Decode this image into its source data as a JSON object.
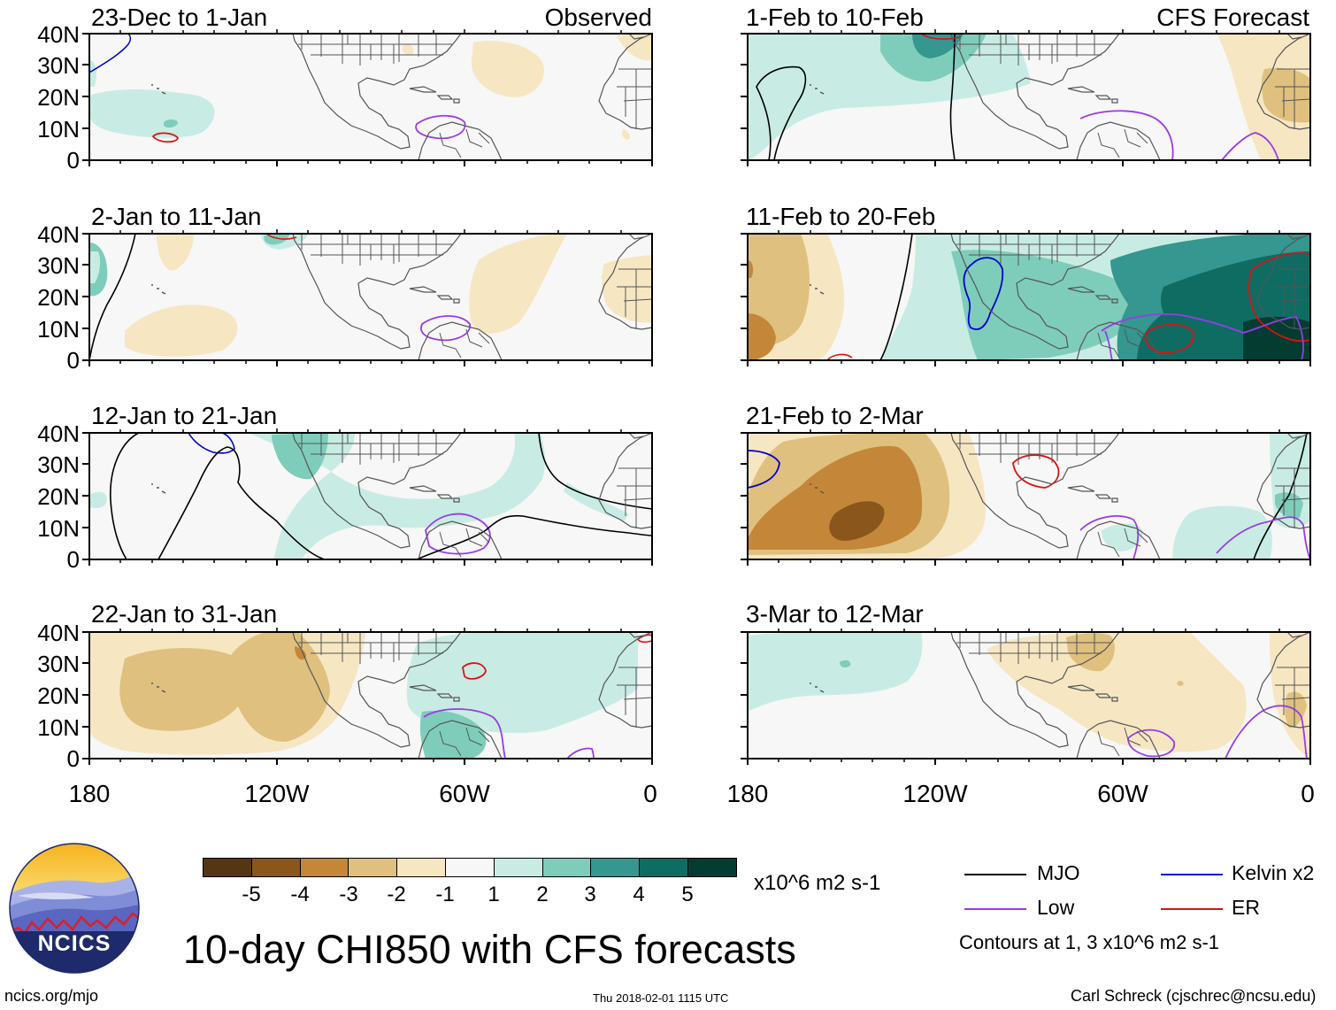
{
  "title": "10-day CHI850 with CFS forecasts",
  "panels": {
    "left": [
      {
        "range": "23-Dec to 1-Jan",
        "label": "Observed"
      },
      {
        "range": "2-Jan to 11-Jan",
        "label": ""
      },
      {
        "range": "12-Jan to 21-Jan",
        "label": ""
      },
      {
        "range": "22-Jan to 31-Jan",
        "label": ""
      }
    ],
    "right": [
      {
        "range": "1-Feb to 10-Feb",
        "label": "CFS Forecast"
      },
      {
        "range": "11-Feb to 20-Feb",
        "label": ""
      },
      {
        "range": "21-Feb to 2-Mar",
        "label": ""
      },
      {
        "range": "3-Mar to 12-Mar",
        "label": ""
      }
    ]
  },
  "lat_ticks": [
    "40N",
    "30N",
    "20N",
    "10N",
    "0"
  ],
  "lon_ticks": [
    "180",
    "120W",
    "60W",
    "0"
  ],
  "colorbar": {
    "unit": "x10^6 m2 s-1",
    "labels": [
      "-5",
      "-4",
      "-3",
      "-2",
      "-1",
      "1",
      "2",
      "3",
      "4",
      "5"
    ],
    "colors": [
      "#553614",
      "#8a561b",
      "#c4873a",
      "#dfc07f",
      "#f6e6c2",
      "#f7f7f7",
      "#c8ece3",
      "#7ecdbb",
      "#35978f",
      "#0e6c63",
      "#043c32"
    ]
  },
  "legend": {
    "mjo": "MJO",
    "kelvin": "Kelvin x2",
    "low": "Low",
    "er": "ER",
    "contours_note": "Contours at 1, 3 x10^6 m2 s-1"
  },
  "colors": {
    "mjo": "#000000",
    "kelvin": "#0000cc",
    "low": "#9a3be8",
    "er": "#e01010"
  },
  "logo_text": "NCICS",
  "footer": {
    "website": "ncics.org/mjo",
    "timestamp": "Thu 2018-02-01 1115 UTC",
    "author": "Carl Schreck (cjschrec@ncsu.edu)"
  }
}
